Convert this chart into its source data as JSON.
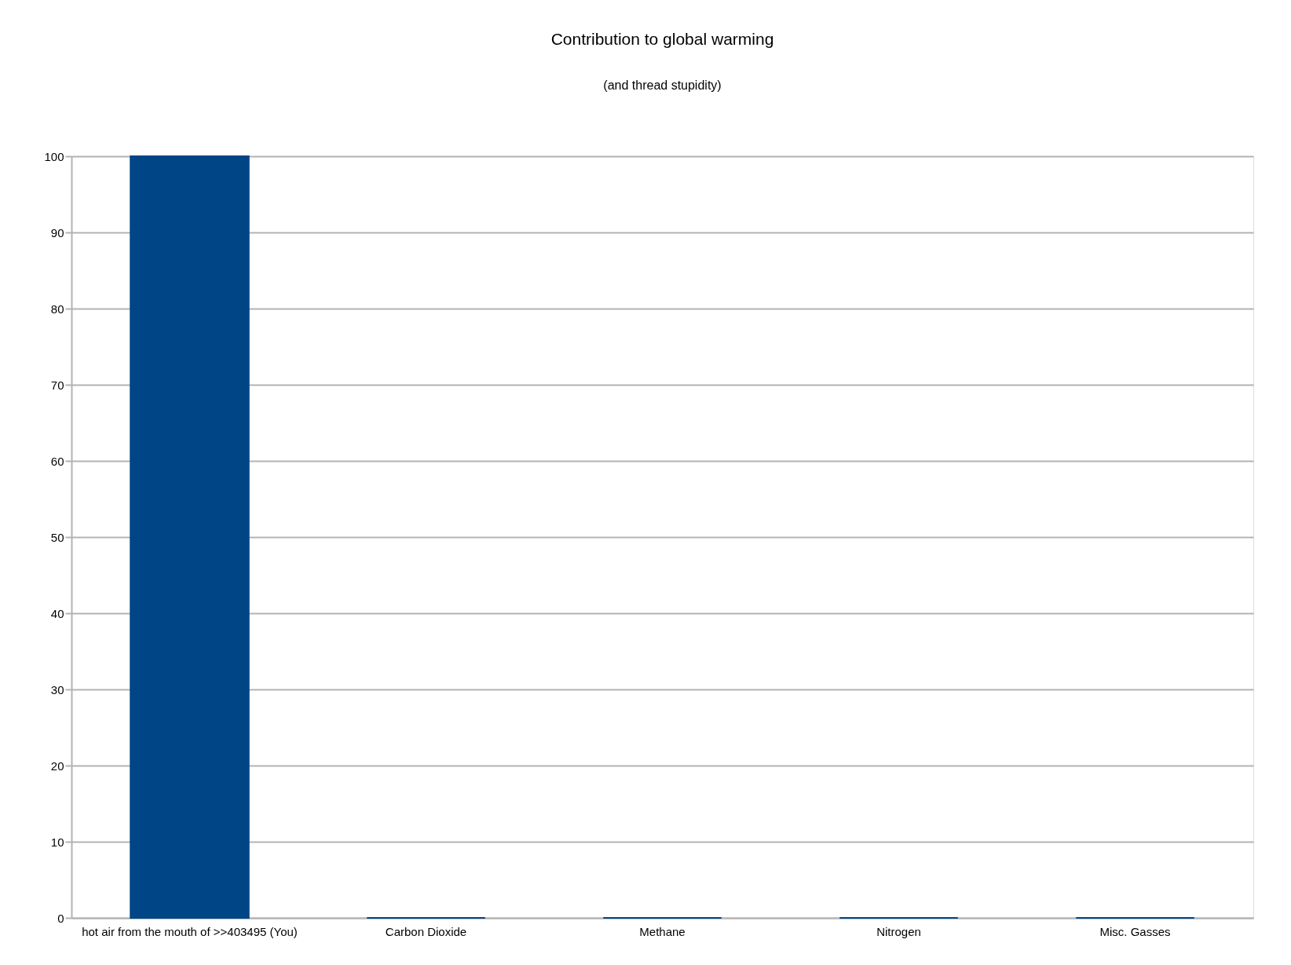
{
  "chart_data": {
    "type": "bar",
    "title": "Contribution to global warming",
    "subtitle": "(and thread stupidity)",
    "categories": [
      "hot air from the mouth of >>403495 (You)",
      "Carbon Dioxide",
      "Methane",
      "Nitrogen",
      "Misc. Gasses"
    ],
    "values": [
      100,
      0,
      0,
      0,
      0
    ],
    "color": "#004586",
    "ylim": [
      0,
      100
    ],
    "yticks": [
      0,
      10,
      20,
      30,
      40,
      50,
      60,
      70,
      80,
      90,
      100
    ],
    "grid": "y"
  }
}
